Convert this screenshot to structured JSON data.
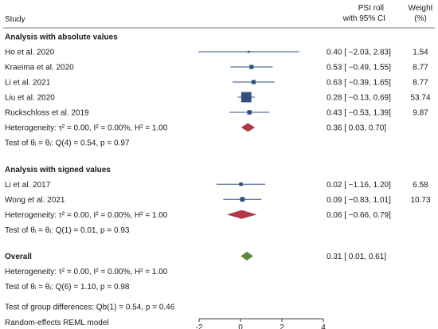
{
  "chart_data": {
    "type": "forest",
    "header": {
      "study": "Study",
      "effect_line1": "PSI roll",
      "effect_line2": "with 95% CI",
      "weight_line1": "Weight",
      "weight_line2": "(%)"
    },
    "xaxis": {
      "ticks": [
        -2,
        0,
        2,
        4
      ],
      "tick_labels": [
        "-2",
        "0",
        "2",
        "4"
      ],
      "range": [
        -2,
        4
      ]
    },
    "groups": [
      {
        "title": "Analysis with absolute values",
        "studies": [
          {
            "name": "Ho et al. 2020",
            "est": 0.4,
            "lo": -2.03,
            "hi": 2.83,
            "ci_text": "0.40 [ −2.03, 2.83]",
            "weight": "1.54",
            "w": 1.54
          },
          {
            "name": "Kraeima et al. 2020",
            "est": 0.53,
            "lo": -0.49,
            "hi": 1.55,
            "ci_text": "0.53 [ −0.49, 1.55]",
            "weight": "8.77",
            "w": 8.77
          },
          {
            "name": "Li et al. 2021",
            "est": 0.63,
            "lo": -0.39,
            "hi": 1.65,
            "ci_text": "0.63 [ −0.39, 1.65]",
            "weight": "8.77",
            "w": 8.77
          },
          {
            "name": "Liu et al. 2020",
            "est": 0.28,
            "lo": -0.13,
            "hi": 0.69,
            "ci_text": "0.28 [ −0.13, 0.69]",
            "weight": "53.74",
            "w": 53.74
          },
          {
            "name": "Ruckschloss et al. 2019",
            "est": 0.43,
            "lo": -0.53,
            "hi": 1.39,
            "ci_text": "0.43 [ −0.53, 1.39]",
            "weight": "9.87",
            "w": 9.87
          }
        ],
        "pooled": {
          "label": "Heterogeneity: τ² = 0.00, I² = 0.00%, H² = 1.00",
          "est": 0.36,
          "lo": 0.03,
          "hi": 0.7,
          "ci_text": "0.36 [  0.03, 0.70]"
        },
        "test": "Test of θᵢ = θⱼ: Q(4) = 0.54, p = 0.97"
      },
      {
        "title": "Analysis with signed values",
        "studies": [
          {
            "name": "Li et al. 2017",
            "est": 0.02,
            "lo": -1.16,
            "hi": 1.2,
            "ci_text": "0.02 [ −1.16, 1.20]",
            "weight": "6.58",
            "w": 6.58
          },
          {
            "name": "Wong et al. 2021",
            "est": 0.09,
            "lo": -0.83,
            "hi": 1.01,
            "ci_text": "0.09 [ −0.83, 1.01]",
            "weight": "10.73",
            "w": 10.73
          }
        ],
        "pooled": {
          "label": "Heterogeneity: τ² = 0.00, I² = 0.00%, H² = 1.00",
          "est": 0.06,
          "lo": -0.66,
          "hi": 0.79,
          "ci_text": "0.06 [ −0.66, 0.79]"
        },
        "test": "Test of θᵢ = θⱼ: Q(1) = 0.01, p = 0.93"
      }
    ],
    "overall": {
      "title": "Overall",
      "est": 0.31,
      "lo": 0.01,
      "hi": 0.61,
      "ci_text": "0.31 [  0.01, 0.61]",
      "heterogeneity": "Heterogeneity: τ² = 0.00, I² = 0.00%, H² = 1.00",
      "test": "Test of θᵢ = θⱼ: Q(6) = 1.10, p = 0.98"
    },
    "group_diff": "Test of group differences: Qb(1) = 0.54, p = 0.46",
    "footnote": "Random-effects REML model",
    "colors": {
      "marker": "#2f4f7f",
      "subgroup_diamond": "#b23a48",
      "overall_diamond": "#5a8a3a",
      "ci_line": "#2f4f7f"
    }
  }
}
